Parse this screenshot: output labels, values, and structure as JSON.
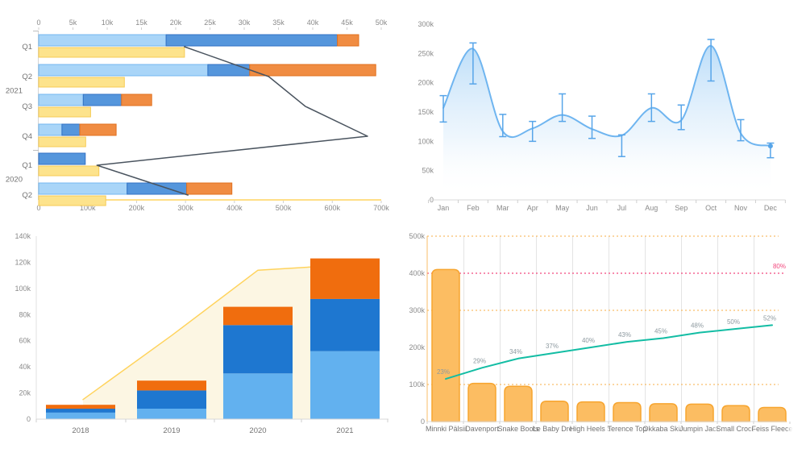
{
  "page": {
    "background": "#ffffff"
  },
  "chart_data": [
    {
      "id": "quarterly-bar-line",
      "type": "bar",
      "orientation": "horizontal",
      "top_axis": {
        "max_k": 50,
        "tick_step_k": 5,
        "tick_labels": [
          "0",
          "5k",
          "10k",
          "15k",
          "20k",
          "25k",
          "30k",
          "35k",
          "40k",
          "45k",
          "50k"
        ]
      },
      "bottom_axis": {
        "max_k": 700,
        "tick_step_k": 100,
        "tick_labels": [
          "0",
          "100k",
          "200k",
          "300k",
          "400k",
          "500k",
          "600k",
          "700k"
        ]
      },
      "year_groups": [
        {
          "label": "2021",
          "rows": 4
        },
        {
          "label": "2020",
          "rows": 2
        }
      ],
      "rows": [
        {
          "year": "2021",
          "quarter": "Q1",
          "stack_k": [
            18.6,
            25.0,
            3.1
          ],
          "yellow_bar_k": 298,
          "line_k": 298
        },
        {
          "year": "2021",
          "quarter": "Q2",
          "stack_k": [
            24.7,
            6.1,
            18.4
          ],
          "yellow_bar_k": 175,
          "line_k": 470
        },
        {
          "year": "2021",
          "quarter": "Q3",
          "stack_k": [
            6.5,
            5.6,
            4.4
          ],
          "yellow_bar_k": 106,
          "line_k": 545
        },
        {
          "year": "2021",
          "quarter": "Q4",
          "stack_k": [
            3.4,
            2.6,
            5.3
          ],
          "yellow_bar_k": 96,
          "line_k": 672
        },
        {
          "year": "2020",
          "quarter": "Q1",
          "stack_k": [
            0,
            6.8,
            0
          ],
          "yellow_bar_k": 123,
          "line_k": 119
        },
        {
          "year": "2020",
          "quarter": "Q2",
          "stack_k": [
            12.9,
            8.7,
            6.6
          ],
          "yellow_bar_k": 137,
          "line_k": 305
        }
      ],
      "colors": {
        "light_blue_fill": "#A9D5F8",
        "light_blue_stroke": "#74B7F0",
        "blue_fill": "#5596DC",
        "blue_stroke": "#3272C4",
        "orange_fill": "#F08C42",
        "orange_stroke": "#E1701F",
        "yellow_fill": "#FDE38C",
        "yellow_stroke": "#F6CB55",
        "line_color": "#4A545F",
        "baseline_color": "#FFD45F"
      }
    },
    {
      "id": "monthly-area-errorbars",
      "type": "area",
      "x": [
        "Jan",
        "Feb",
        "Mar",
        "Apr",
        "May",
        "Jun",
        "Jul",
        "Aug",
        "Sep",
        "Oct",
        "Nov",
        "Dec"
      ],
      "values_k": [
        157,
        258,
        117,
        122,
        145,
        121,
        110,
        157,
        136,
        263,
        114,
        92
      ],
      "error_low_k": [
        133,
        198,
        108,
        100,
        134,
        105,
        74,
        134,
        120,
        203,
        101,
        72
      ],
      "error_high_k": [
        178,
        268,
        146,
        134,
        181,
        143,
        111,
        181,
        162,
        274,
        137,
        97
      ],
      "ylim_k": [
        0,
        300
      ],
      "ytick_labels": [
        "0",
        "50k",
        "100k",
        "150k",
        "200k",
        "250k",
        "300k"
      ],
      "colors": {
        "line": "#6FB5F0",
        "error": "#57A5E9",
        "marker": "#57A5E9",
        "area_top": "#B5DAF8",
        "area_bottom": "#FFFFFF"
      }
    },
    {
      "id": "yearly-stacked-bars",
      "type": "bar",
      "categories": [
        "2018",
        "2019",
        "2020",
        "2021"
      ],
      "series": [
        {
          "name": "light-blue",
          "color": "#62B1EF",
          "values_k": [
            5,
            8,
            35,
            52
          ]
        },
        {
          "name": "blue",
          "color": "#1E77D0",
          "values_k": [
            3,
            14,
            37,
            40
          ]
        },
        {
          "name": "orange",
          "color": "#F06D0E",
          "values_k": [
            3,
            7.5,
            14,
            31
          ]
        }
      ],
      "overlay_line": {
        "name": "yellow-line",
        "color": "#FFD35C",
        "fill": "#FCF6E3",
        "values_k": [
          15,
          64,
          114,
          118
        ]
      },
      "ylim_k": [
        0,
        140
      ],
      "ytick_labels": [
        "0",
        "20k",
        "40k",
        "60k",
        "80k",
        "100k",
        "120k",
        "140k"
      ]
    },
    {
      "id": "product-pareto",
      "type": "bar",
      "categories": [
        {
          "label": "Minnki Pälsii",
          "truncated": false
        },
        {
          "label": "Davenport",
          "truncated": false
        },
        {
          "label": "Snake Boots",
          "truncated": false
        },
        {
          "label": "Le Baby Dres",
          "truncated": true
        },
        {
          "label": "High Heels S",
          "truncated": true
        },
        {
          "label": "Terence Top",
          "truncated": false
        },
        {
          "label": "Okkaba Skin",
          "truncated": true
        },
        {
          "label": "Jumpin Jack",
          "truncated": true
        },
        {
          "label": "Small Croco",
          "truncated": true
        },
        {
          "label": "Feiss Fleece",
          "truncated": true
        }
      ],
      "values_k": [
        410,
        103,
        95,
        55,
        53,
        51,
        48,
        47,
        43,
        38
      ],
      "cumulative_line": {
        "color": "#13BDA4",
        "percent_labels": [
          "23%",
          "29%",
          "34%",
          "37%",
          "40%",
          "43%",
          "45%",
          "48%",
          "50%",
          "52%"
        ],
        "values_k": [
          115,
          145,
          170,
          185,
          200,
          215,
          225,
          240,
          250,
          260
        ]
      },
      "reference_line": {
        "value_k": 400,
        "label": "80%",
        "color": "#F2487E"
      },
      "gridlines_k": [
        100,
        300,
        500
      ],
      "ylim_k": [
        0,
        500
      ],
      "ytick_labels": [
        "0",
        "100k",
        "200k",
        "300k",
        "400k",
        "500k"
      ],
      "colors": {
        "bar_fill": "#FCBD62",
        "bar_stroke": "#F7A52F",
        "grid_vertical": "#E4E4E4",
        "grid_dotted": "#F7AE45",
        "axis_line": "#F9BE68",
        "pct_label": "#8E9AA0",
        "tick_label": "#8a8a8a",
        "cat_label": "#737373"
      }
    }
  ]
}
